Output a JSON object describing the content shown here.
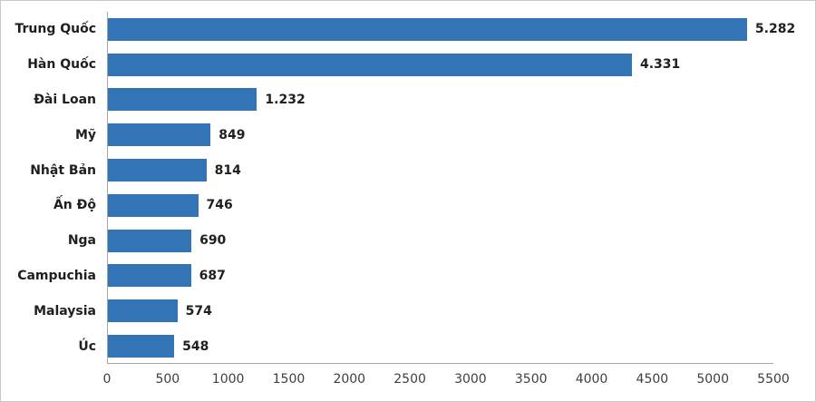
{
  "chart_data": {
    "type": "bar",
    "orientation": "horizontal",
    "title": "",
    "xlabel": "",
    "ylabel": "",
    "categories": [
      "Trung Quốc",
      "Hàn Quốc",
      "Đài Loan",
      "Mỹ",
      "Nhật Bản",
      "Ấn Độ",
      "Nga",
      "Campuchia",
      "Malaysia",
      "Úc"
    ],
    "values": [
      5282,
      4331,
      1232,
      849,
      814,
      746,
      690,
      687,
      574,
      548
    ],
    "value_labels": [
      "5.282",
      "4.331",
      "1.232",
      "849",
      "814",
      "746",
      "690",
      "687",
      "574",
      "548"
    ],
    "xlim": [
      0,
      5500
    ],
    "x_ticks": [
      0,
      500,
      1000,
      1500,
      2000,
      2500,
      3000,
      3500,
      4000,
      4500,
      5000,
      5500
    ],
    "x_tick_labels": [
      "0",
      "500",
      "1000",
      "1500",
      "2000",
      "2500",
      "3000",
      "3500",
      "4000",
      "4500",
      "5000",
      "5500"
    ],
    "grid": false,
    "legend": false,
    "colors": {
      "bar": "#3274b5",
      "axis_line": "#a6a6a6",
      "category_label": "#1f1f1f",
      "value_label": "#1f1f1f",
      "tick_label": "#3f3f3f",
      "background": "#ffffff",
      "image_border": "#c9c9c9"
    }
  }
}
